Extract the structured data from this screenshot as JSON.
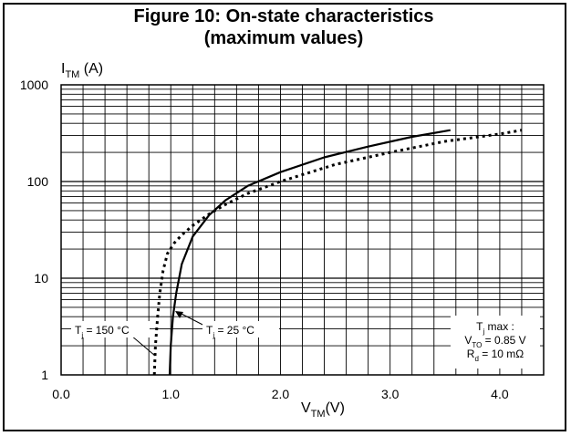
{
  "chart_data": {
    "type": "line",
    "title": [
      "Figure 10: On-state characteristics",
      "(maximum values)"
    ],
    "ylabel": {
      "main": "I",
      "sub": "TM",
      "unit": " (A)"
    },
    "xlabel": {
      "main": "V",
      "sub": "TM",
      "unit": "(V)"
    },
    "xlim": [
      0,
      4.4
    ],
    "ylim": [
      1,
      1000
    ],
    "yscale": "log",
    "grid": true,
    "x_ticks": [
      "0.0",
      "1.0",
      "2.0",
      "3.0",
      "4.0"
    ],
    "y_ticks": [
      "1",
      "10",
      "100",
      "1000"
    ],
    "series": [
      {
        "style": "solid",
        "x": [
          0.99,
          1.0,
          1.02,
          1.05,
          1.1,
          1.2,
          1.35,
          1.5,
          1.7,
          2.0,
          2.4,
          2.8,
          3.2,
          3.55
        ],
        "y": [
          1,
          2,
          4,
          7,
          14,
          27,
          45,
          64,
          90,
          125,
          178,
          230,
          290,
          340
        ]
      },
      {
        "style": "dotted",
        "x": [
          0.85,
          0.86,
          0.88,
          0.9,
          0.93,
          0.97,
          1.03,
          1.1,
          1.2,
          1.35,
          1.5,
          1.7,
          2.0,
          2.5,
          3.0,
          3.5,
          4.0,
          4.2
        ],
        "y": [
          1,
          2,
          4,
          7,
          12,
          18,
          23,
          28,
          35,
          46,
          58,
          75,
          100,
          150,
          200,
          260,
          310,
          340
        ]
      }
    ],
    "annotations": [
      {
        "main": "T",
        "sub": "j",
        "rest": " = 150 °C"
      },
      {
        "main": "T",
        "sub": "j",
        "rest": " = 25 °C"
      }
    ],
    "legend_box": [
      {
        "main": "T",
        "sub": "j",
        "rest": " max :"
      },
      {
        "main": "V",
        "sub": "TO",
        "rest": " = 0.85 V"
      },
      {
        "main": "R",
        "sub": "d",
        "rest": " = 10 mΩ"
      }
    ]
  }
}
